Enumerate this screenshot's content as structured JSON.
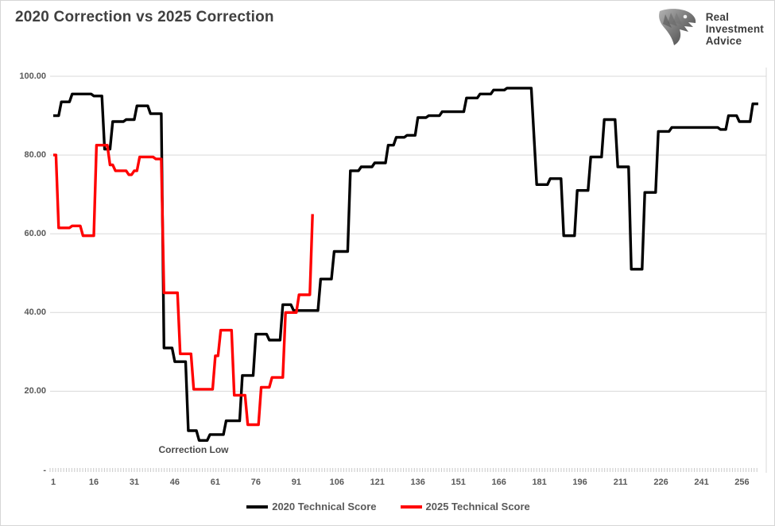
{
  "header": {
    "title": "2020 Correction vs 2025 Correction"
  },
  "logo": {
    "alt": "Real Investment Advice",
    "lines": [
      "Real",
      "Investment",
      "Advice"
    ]
  },
  "chart_data": {
    "type": "line",
    "title": "2020 Correction vs 2025 Correction",
    "xlabel": "",
    "ylabel": "",
    "xlim": [
      1,
      262
    ],
    "ylim": [
      0,
      100
    ],
    "grid": "horizontal",
    "legend_position": "bottom-center",
    "x_ticks": [
      1,
      16,
      31,
      46,
      61,
      76,
      91,
      106,
      121,
      136,
      151,
      166,
      181,
      196,
      211,
      226,
      241,
      256
    ],
    "y_ticks": [
      {
        "label": "100.00",
        "value": 100
      },
      {
        "label": "80.00",
        "value": 80
      },
      {
        "label": "60.00",
        "value": 60
      },
      {
        "label": "40.00",
        "value": 40
      },
      {
        "label": "20.00",
        "value": 20
      },
      {
        "label": "-",
        "value": 0
      }
    ],
    "annotation": {
      "text": "Correction Low",
      "x": 40,
      "y": 5
    },
    "series": [
      {
        "name": "2020 Technical Score",
        "color": "#000000",
        "segments": [
          [
            1,
            3,
            90
          ],
          [
            4,
            7,
            93.5
          ],
          [
            8,
            15,
            95.5
          ],
          [
            16,
            19,
            95
          ],
          [
            20,
            22,
            81.5
          ],
          [
            23,
            27,
            88.5
          ],
          [
            28,
            31,
            89
          ],
          [
            32,
            36,
            92.5
          ],
          [
            37,
            41,
            90.5
          ],
          [
            42,
            45,
            31
          ],
          [
            46,
            50,
            27.5
          ],
          [
            51,
            54,
            10
          ],
          [
            55,
            58,
            7.5
          ],
          [
            59,
            64,
            9
          ],
          [
            65,
            70,
            12.5
          ],
          [
            71,
            75,
            24
          ],
          [
            76,
            80,
            34.5
          ],
          [
            81,
            85,
            33
          ],
          [
            86,
            89,
            42
          ],
          [
            90,
            99,
            40.5
          ],
          [
            100,
            104,
            48.5
          ],
          [
            105,
            110,
            55.5
          ],
          [
            111,
            114,
            76
          ],
          [
            115,
            119,
            77
          ],
          [
            120,
            124,
            78
          ],
          [
            125,
            127,
            82.5
          ],
          [
            128,
            131,
            84.5
          ],
          [
            132,
            135,
            85
          ],
          [
            136,
            139,
            89.5
          ],
          [
            140,
            144,
            90
          ],
          [
            145,
            153,
            91
          ],
          [
            154,
            158,
            94.5
          ],
          [
            159,
            163,
            95.5
          ],
          [
            164,
            168,
            96.5
          ],
          [
            169,
            178,
            97
          ],
          [
            180,
            184,
            72.5
          ],
          [
            185,
            189,
            74
          ],
          [
            190,
            194,
            59.5
          ],
          [
            195,
            199,
            71
          ],
          [
            200,
            204,
            79.5
          ],
          [
            205,
            209,
            89
          ],
          [
            210,
            214,
            77
          ],
          [
            215,
            219,
            51
          ],
          [
            220,
            224,
            70.5
          ],
          [
            225,
            229,
            86
          ],
          [
            230,
            247,
            87
          ],
          [
            248,
            250,
            86.5
          ],
          [
            251,
            254,
            90
          ],
          [
            255,
            259,
            88.5
          ],
          [
            260,
            262,
            93
          ]
        ]
      },
      {
        "name": "2025 Technical Score",
        "color": "#ff0000",
        "segments": [
          [
            1,
            2,
            80
          ],
          [
            3,
            7,
            61.5
          ],
          [
            8,
            11,
            62
          ],
          [
            12,
            16,
            59.5
          ],
          [
            17,
            21,
            82.5
          ],
          [
            22,
            23,
            77.5
          ],
          [
            24,
            28,
            76
          ],
          [
            29,
            30,
            75
          ],
          [
            31,
            32,
            76
          ],
          [
            33,
            38,
            79.5
          ],
          [
            39,
            41,
            79
          ],
          [
            42,
            47,
            45
          ],
          [
            48,
            52,
            29.5
          ],
          [
            53,
            60,
            20.5
          ],
          [
            61,
            62,
            29
          ],
          [
            63,
            67,
            35.5
          ],
          [
            68,
            72,
            19
          ],
          [
            73,
            77,
            11.5
          ],
          [
            78,
            81,
            21
          ],
          [
            82,
            86,
            23.5
          ],
          [
            87,
            91,
            40
          ],
          [
            92,
            96,
            44.5
          ],
          [
            97,
            97,
            65
          ]
        ]
      }
    ]
  }
}
